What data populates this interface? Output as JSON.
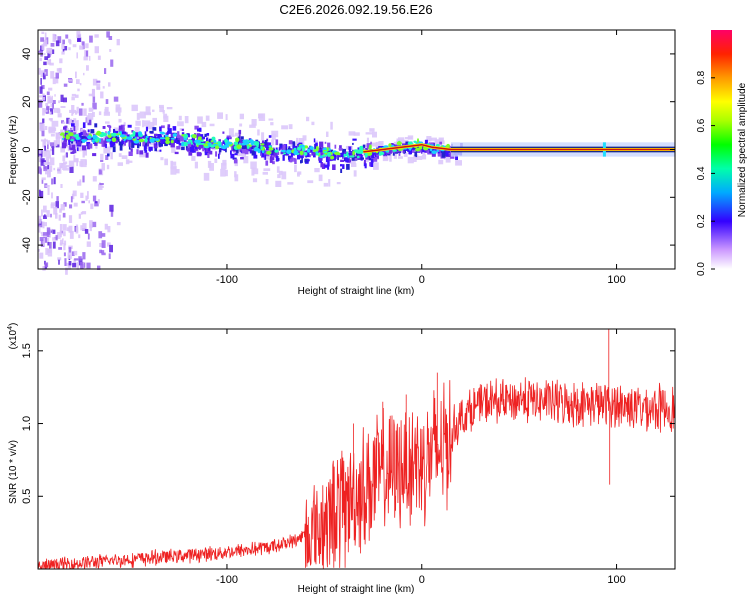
{
  "title": "C2E6.2026.092.19.56.E26",
  "colors": {
    "snr_line": "#ee2222",
    "ridge": "#cc1111",
    "background": "#ffffff",
    "axis": "#000000"
  },
  "chart_data": [
    {
      "type": "heatmap",
      "name": "spectrogram",
      "xlabel": "Height of straight line (km)",
      "ylabel": "Frequency (Hz)",
      "xlim": [
        -197,
        130
      ],
      "ylim": [
        -50,
        50
      ],
      "xticks": [
        {
          "v": -100,
          "label": "-100"
        },
        {
          "v": 0,
          "label": "0"
        },
        {
          "v": 100,
          "label": "100"
        }
      ],
      "yticks": [
        {
          "v": -40,
          "label": "-40"
        },
        {
          "v": -20,
          "label": "-20"
        },
        {
          "v": 0,
          "label": "0"
        },
        {
          "v": 20,
          "label": "20"
        },
        {
          "v": 40,
          "label": "40"
        }
      ],
      "ridge": [
        [
          -185,
          6
        ],
        [
          -170,
          5
        ],
        [
          -150,
          5
        ],
        [
          -130,
          5
        ],
        [
          -110,
          3
        ],
        [
          -90,
          2
        ],
        [
          -75,
          0
        ],
        [
          -60,
          0
        ],
        [
          -45,
          -2
        ],
        [
          -30,
          -1
        ],
        [
          -20,
          0
        ],
        [
          -10,
          1
        ],
        [
          0,
          2
        ],
        [
          5,
          1
        ],
        [
          15,
          0
        ],
        [
          130,
          0
        ]
      ],
      "colorbar": {
        "label": "Normalized spectral amplitude",
        "range": [
          0,
          1
        ],
        "ticks": [
          {
            "v": 0,
            "label": "0.0"
          },
          {
            "v": 0.2,
            "label": "0.2"
          },
          {
            "v": 0.4,
            "label": "0.4"
          },
          {
            "v": 0.6,
            "label": "0.6"
          },
          {
            "v": 0.8,
            "label": "0.8"
          }
        ]
      }
    },
    {
      "type": "line",
      "name": "snr",
      "xlabel": "Height of straight line (km)",
      "ylabel": "SNR (10 * v/v)",
      "y_scale_label": "(x10",
      "y_scale_exp": "4",
      "xlim": [
        -197,
        130
      ],
      "ylim": [
        0,
        1.65
      ],
      "xticks": [
        {
          "v": -100,
          "label": "-100"
        },
        {
          "v": 0,
          "label": "0"
        },
        {
          "v": 100,
          "label": "100"
        }
      ],
      "yticks": [
        {
          "v": 0.5,
          "label": "0.5"
        },
        {
          "v": 1.0,
          "label": "1.0"
        },
        {
          "v": 1.5,
          "label": "1.5"
        }
      ],
      "envelope": [
        [
          -197,
          0.02
        ],
        [
          -180,
          0.04
        ],
        [
          -150,
          0.07
        ],
        [
          -120,
          0.1
        ],
        [
          -100,
          0.12
        ],
        [
          -80,
          0.15
        ],
        [
          -65,
          0.2
        ],
        [
          -55,
          0.28
        ],
        [
          -45,
          0.42
        ],
        [
          -35,
          0.55
        ],
        [
          -25,
          0.65
        ],
        [
          -15,
          0.72
        ],
        [
          -5,
          0.78
        ],
        [
          5,
          0.82
        ],
        [
          12,
          0.9
        ],
        [
          20,
          1.05
        ],
        [
          30,
          1.15
        ],
        [
          50,
          1.18
        ],
        [
          70,
          1.16
        ],
        [
          90,
          1.15
        ],
        [
          110,
          1.13
        ],
        [
          130,
          1.12
        ]
      ],
      "spikes": [
        {
          "x": -35,
          "y": 1.0
        },
        {
          "x": -20,
          "y": 1.15
        },
        {
          "x": -8,
          "y": 1.2
        },
        {
          "x": 8,
          "y": 1.35
        },
        {
          "x": 96,
          "y": 1.65
        },
        {
          "x": 96.5,
          "y": 0.58
        }
      ]
    }
  ]
}
